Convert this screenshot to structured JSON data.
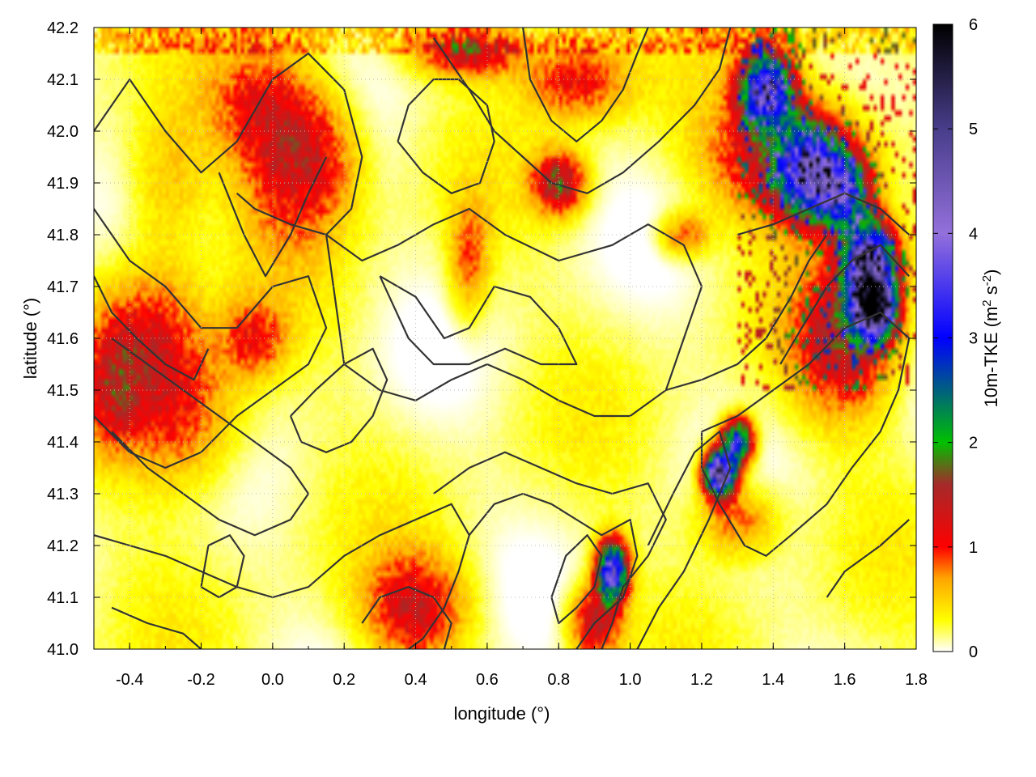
{
  "chart_data": {
    "type": "heatmap",
    "xlabel": "longitude (°)",
    "ylabel": "latitude (°)",
    "colorbar_label": "10m-TKE (m",
    "colorbar_label_sup1": "2",
    "colorbar_label_mid": " s",
    "colorbar_label_sup2": "-2",
    "colorbar_label_end": ")",
    "xlim": [
      -0.5,
      1.8
    ],
    "ylim": [
      41.0,
      42.2
    ],
    "zlim": [
      0,
      6
    ],
    "x_ticks": [
      -0.4,
      -0.2,
      0.0,
      0.2,
      0.4,
      0.6,
      0.8,
      1.0,
      1.2,
      1.4,
      1.6,
      1.8
    ],
    "x_tick_labels": [
      "-0.4",
      "-0.2",
      "0.0",
      "0.2",
      "0.4",
      "0.6",
      "0.8",
      "1.0",
      "1.2",
      "1.4",
      "1.6",
      "1.8"
    ],
    "y_ticks": [
      41.0,
      41.1,
      41.2,
      41.3,
      41.4,
      41.5,
      41.6,
      41.7,
      41.8,
      41.9,
      42.0,
      42.1,
      42.2
    ],
    "y_tick_labels": [
      "41.0",
      "41.1",
      "41.2",
      "41.3",
      "41.4",
      "41.5",
      "41.6",
      "41.7",
      "41.8",
      "41.9",
      "42.0",
      "42.1",
      "42.2"
    ],
    "colorbar_ticks": [
      0,
      1,
      2,
      3,
      4,
      5,
      6
    ],
    "colorbar_tick_labels": [
      "0",
      "1",
      "2",
      "3",
      "4",
      "5",
      "6"
    ],
    "colormap_stops": [
      {
        "v": 0.0,
        "color": "#ffffff"
      },
      {
        "v": 0.3,
        "color": "#ffff00"
      },
      {
        "v": 0.7,
        "color": "#ffa500"
      },
      {
        "v": 1.0,
        "color": "#ff0000"
      },
      {
        "v": 1.6,
        "color": "#a52a2a"
      },
      {
        "v": 2.0,
        "color": "#00c000"
      },
      {
        "v": 3.0,
        "color": "#0000ff"
      },
      {
        "v": 4.0,
        "color": "#9370db"
      },
      {
        "v": 5.0,
        "color": "#483d8b"
      },
      {
        "v": 6.0,
        "color": "#000000"
      }
    ],
    "field_blobs": [
      {
        "lon": 0.05,
        "lat": 41.95,
        "sx": 0.1,
        "sy": 0.12,
        "amp": 0.9
      },
      {
        "lon": 0.15,
        "lat": 41.95,
        "sx": 0.08,
        "sy": 0.08,
        "amp": 0.5
      },
      {
        "lon": -0.05,
        "lat": 42.05,
        "sx": 0.1,
        "sy": 0.08,
        "amp": 0.6
      },
      {
        "lon": -0.35,
        "lat": 41.6,
        "sx": 0.1,
        "sy": 0.1,
        "amp": 0.9
      },
      {
        "lon": -0.25,
        "lat": 41.45,
        "sx": 0.12,
        "sy": 0.1,
        "amp": 0.8
      },
      {
        "lon": -0.45,
        "lat": 41.5,
        "sx": 0.05,
        "sy": 0.08,
        "amp": 0.7
      },
      {
        "lon": -0.05,
        "lat": 41.6,
        "sx": 0.06,
        "sy": 0.05,
        "amp": 0.8
      },
      {
        "lon": 0.4,
        "lat": 41.08,
        "sx": 0.1,
        "sy": 0.07,
        "amp": 1.1
      },
      {
        "lon": 0.55,
        "lat": 41.75,
        "sx": 0.04,
        "sy": 0.08,
        "amp": 0.7
      },
      {
        "lon": 1.45,
        "lat": 41.95,
        "sx": 0.15,
        "sy": 0.08,
        "amp": 1.4
      },
      {
        "lon": 1.38,
        "lat": 42.08,
        "sx": 0.05,
        "sy": 0.05,
        "amp": 3.5
      },
      {
        "lon": 1.5,
        "lat": 41.92,
        "sx": 0.06,
        "sy": 0.06,
        "amp": 3.0
      },
      {
        "lon": 1.6,
        "lat": 41.88,
        "sx": 0.05,
        "sy": 0.05,
        "amp": 2.5
      },
      {
        "lon": 1.67,
        "lat": 41.75,
        "sx": 0.05,
        "sy": 0.05,
        "amp": 3.8
      },
      {
        "lon": 1.68,
        "lat": 41.66,
        "sx": 0.04,
        "sy": 0.04,
        "amp": 5.5
      },
      {
        "lon": 1.6,
        "lat": 41.6,
        "sx": 0.1,
        "sy": 0.1,
        "amp": 1.3
      },
      {
        "lon": 1.25,
        "lat": 41.34,
        "sx": 0.03,
        "sy": 0.03,
        "amp": 4.5
      },
      {
        "lon": 1.3,
        "lat": 41.4,
        "sx": 0.03,
        "sy": 0.03,
        "amp": 3.0
      },
      {
        "lon": 0.95,
        "lat": 41.15,
        "sx": 0.03,
        "sy": 0.04,
        "amp": 3.5
      },
      {
        "lon": 0.9,
        "lat": 41.05,
        "sx": 0.05,
        "sy": 0.05,
        "amp": 1.2
      },
      {
        "lon": 0.85,
        "lat": 42.1,
        "sx": 0.1,
        "sy": 0.05,
        "amp": 1.0
      },
      {
        "lon": 0.55,
        "lat": 42.15,
        "sx": 0.1,
        "sy": 0.03,
        "amp": 1.2
      },
      {
        "lon": 1.3,
        "lat": 41.25,
        "sx": 0.08,
        "sy": 0.05,
        "amp": 0.8
      },
      {
        "lon": 1.15,
        "lat": 41.8,
        "sx": 0.05,
        "sy": 0.03,
        "amp": 0.8
      },
      {
        "lon": 0.8,
        "lat": 41.9,
        "sx": 0.05,
        "sy": 0.04,
        "amp": 1.5
      },
      {
        "lon": -0.3,
        "lat": 41.9,
        "sx": 0.08,
        "sy": 0.1,
        "amp": 0.5
      }
    ],
    "contours": [
      [
        [
          -0.5,
          42.0
        ],
        [
          -0.4,
          42.1
        ],
        [
          -0.3,
          42.0
        ],
        [
          -0.2,
          41.92
        ],
        [
          -0.1,
          41.98
        ],
        [
          0.0,
          42.1
        ],
        [
          0.1,
          42.15
        ],
        [
          0.2,
          42.08
        ],
        [
          0.25,
          41.95
        ],
        [
          0.22,
          41.85
        ],
        [
          0.15,
          41.8
        ],
        [
          0.05,
          41.82
        ],
        [
          -0.05,
          41.85
        ],
        [
          -0.1,
          41.88
        ]
      ],
      [
        [
          -0.5,
          41.85
        ],
        [
          -0.4,
          41.75
        ],
        [
          -0.3,
          41.7
        ],
        [
          -0.2,
          41.62
        ],
        [
          -0.1,
          41.62
        ],
        [
          0.0,
          41.7
        ],
        [
          0.1,
          41.72
        ],
        [
          0.15,
          41.62
        ],
        [
          0.1,
          41.55
        ],
        [
          0.0,
          41.5
        ],
        [
          -0.1,
          41.45
        ],
        [
          -0.2,
          41.38
        ],
        [
          -0.3,
          41.35
        ],
        [
          -0.4,
          41.38
        ],
        [
          -0.5,
          41.45
        ]
      ],
      [
        [
          -0.45,
          41.6
        ],
        [
          -0.35,
          41.55
        ],
        [
          -0.25,
          41.5
        ],
        [
          -0.15,
          41.45
        ],
        [
          -0.05,
          41.4
        ],
        [
          0.05,
          41.35
        ],
        [
          0.1,
          41.3
        ],
        [
          0.05,
          41.25
        ],
        [
          -0.05,
          41.22
        ],
        [
          -0.15,
          41.25
        ],
        [
          -0.25,
          41.3
        ],
        [
          -0.35,
          41.35
        ],
        [
          -0.45,
          41.42
        ]
      ],
      [
        [
          -0.15,
          41.92
        ],
        [
          -0.08,
          41.8
        ],
        [
          -0.02,
          41.72
        ],
        [
          0.05,
          41.8
        ],
        [
          0.1,
          41.88
        ],
        [
          0.15,
          41.95
        ]
      ],
      [
        [
          0.15,
          41.8
        ],
        [
          0.25,
          41.75
        ],
        [
          0.35,
          41.78
        ],
        [
          0.45,
          41.82
        ],
        [
          0.55,
          41.85
        ],
        [
          0.65,
          41.8
        ],
        [
          0.8,
          41.75
        ],
        [
          0.95,
          41.78
        ],
        [
          1.05,
          41.82
        ],
        [
          1.15,
          41.78
        ],
        [
          1.2,
          41.7
        ],
        [
          1.15,
          41.6
        ],
        [
          1.1,
          41.5
        ],
        [
          1.0,
          41.45
        ],
        [
          0.9,
          41.45
        ],
        [
          0.8,
          41.48
        ],
        [
          0.7,
          41.52
        ],
        [
          0.6,
          41.55
        ],
        [
          0.5,
          41.52
        ],
        [
          0.4,
          41.48
        ],
        [
          0.3,
          41.5
        ],
        [
          0.2,
          41.55
        ],
        [
          0.18,
          41.65
        ],
        [
          0.15,
          41.8
        ]
      ],
      [
        [
          0.3,
          41.72
        ],
        [
          0.4,
          41.68
        ],
        [
          0.48,
          41.6
        ],
        [
          0.55,
          41.62
        ],
        [
          0.62,
          41.7
        ],
        [
          0.72,
          41.68
        ],
        [
          0.8,
          41.62
        ],
        [
          0.85,
          41.55
        ],
        [
          0.75,
          41.55
        ],
        [
          0.65,
          41.58
        ],
        [
          0.55,
          41.55
        ],
        [
          0.45,
          41.55
        ],
        [
          0.38,
          41.6
        ],
        [
          0.3,
          41.72
        ]
      ],
      [
        [
          0.45,
          41.3
        ],
        [
          0.55,
          41.35
        ],
        [
          0.65,
          41.38
        ],
        [
          0.75,
          41.35
        ],
        [
          0.85,
          41.32
        ],
        [
          0.95,
          41.3
        ],
        [
          1.05,
          41.32
        ],
        [
          1.1,
          41.25
        ],
        [
          1.05,
          41.18
        ],
        [
          0.98,
          41.12
        ],
        [
          0.95,
          41.05
        ],
        [
          0.92,
          41.0
        ]
      ],
      [
        [
          0.55,
          41.22
        ],
        [
          0.62,
          41.28
        ],
        [
          0.7,
          41.3
        ],
        [
          0.78,
          41.28
        ],
        [
          0.85,
          41.25
        ],
        [
          0.92,
          41.22
        ],
        [
          1.0,
          41.25
        ],
        [
          1.02,
          41.18
        ],
        [
          0.98,
          41.1
        ],
        [
          0.9,
          41.05
        ],
        [
          0.85,
          41.0
        ]
      ],
      [
        [
          1.2,
          41.42
        ],
        [
          1.3,
          41.45
        ],
        [
          1.4,
          41.5
        ],
        [
          1.5,
          41.55
        ],
        [
          1.6,
          41.62
        ],
        [
          1.7,
          41.65
        ],
        [
          1.78,
          41.6
        ],
        [
          1.75,
          41.5
        ],
        [
          1.7,
          41.42
        ],
        [
          1.62,
          41.35
        ],
        [
          1.55,
          41.28
        ],
        [
          1.45,
          41.22
        ],
        [
          1.38,
          41.18
        ],
        [
          1.32,
          41.2
        ],
        [
          1.25,
          41.28
        ],
        [
          1.2,
          41.35
        ],
        [
          1.2,
          41.42
        ]
      ],
      [
        [
          0.7,
          42.2
        ],
        [
          0.72,
          42.1
        ],
        [
          0.78,
          42.02
        ],
        [
          0.85,
          41.98
        ],
        [
          0.92,
          42.02
        ],
        [
          0.98,
          42.08
        ],
        [
          1.02,
          42.15
        ],
        [
          1.05,
          42.2
        ]
      ],
      [
        [
          0.45,
          42.18
        ],
        [
          0.55,
          42.08
        ],
        [
          0.62,
          42.0
        ],
        [
          0.7,
          41.95
        ],
        [
          0.78,
          41.9
        ],
        [
          0.88,
          41.88
        ],
        [
          0.98,
          41.92
        ],
        [
          1.08,
          41.98
        ],
        [
          1.18,
          42.05
        ],
        [
          1.25,
          42.12
        ],
        [
          1.28,
          42.2
        ]
      ],
      [
        [
          1.3,
          41.8
        ],
        [
          1.4,
          41.82
        ],
        [
          1.5,
          41.85
        ],
        [
          1.6,
          41.88
        ],
        [
          1.7,
          41.85
        ],
        [
          1.78,
          41.8
        ]
      ],
      [
        [
          -0.5,
          41.22
        ],
        [
          -0.4,
          41.2
        ],
        [
          -0.3,
          41.18
        ],
        [
          -0.2,
          41.15
        ],
        [
          -0.1,
          41.12
        ],
        [
          0.0,
          41.1
        ],
        [
          0.1,
          41.12
        ],
        [
          0.2,
          41.18
        ],
        [
          0.3,
          41.22
        ],
        [
          0.4,
          41.25
        ],
        [
          0.5,
          41.28
        ],
        [
          0.55,
          41.22
        ],
        [
          0.52,
          41.15
        ],
        [
          0.48,
          41.08
        ],
        [
          0.42,
          41.02
        ],
        [
          0.38,
          41.0
        ]
      ],
      [
        [
          0.25,
          41.05
        ],
        [
          0.3,
          41.1
        ],
        [
          0.38,
          41.12
        ],
        [
          0.45,
          41.1
        ],
        [
          0.5,
          41.05
        ],
        [
          0.48,
          41.0
        ]
      ],
      [
        [
          -0.45,
          41.08
        ],
        [
          -0.35,
          41.05
        ],
        [
          -0.25,
          41.03
        ],
        [
          -0.2,
          41.0
        ]
      ],
      [
        [
          -0.2,
          41.12
        ],
        [
          -0.15,
          41.1
        ],
        [
          -0.1,
          41.12
        ],
        [
          -0.08,
          41.18
        ],
        [
          -0.12,
          41.22
        ],
        [
          -0.18,
          41.2
        ],
        [
          -0.2,
          41.12
        ]
      ],
      [
        [
          1.55,
          41.1
        ],
        [
          1.6,
          41.15
        ],
        [
          1.7,
          41.2
        ],
        [
          1.78,
          41.25
        ]
      ],
      [
        [
          0.35,
          41.98
        ],
        [
          0.42,
          41.92
        ],
        [
          0.5,
          41.88
        ],
        [
          0.58,
          41.9
        ],
        [
          0.62,
          41.98
        ],
        [
          0.6,
          42.05
        ],
        [
          0.52,
          42.1
        ],
        [
          0.45,
          42.1
        ],
        [
          0.38,
          42.05
        ],
        [
          0.35,
          41.98
        ]
      ],
      [
        [
          1.42,
          41.55
        ],
        [
          1.48,
          41.62
        ],
        [
          1.55,
          41.7
        ],
        [
          1.62,
          41.75
        ],
        [
          1.7,
          41.78
        ],
        [
          1.78,
          41.72
        ]
      ],
      [
        [
          1.05,
          41.2
        ],
        [
          1.12,
          41.3
        ],
        [
          1.18,
          41.38
        ],
        [
          1.25,
          41.42
        ],
        [
          1.28,
          41.35
        ],
        [
          1.22,
          41.25
        ],
        [
          1.15,
          41.15
        ],
        [
          1.08,
          41.08
        ],
        [
          1.02,
          41.0
        ]
      ],
      [
        [
          1.1,
          41.5
        ],
        [
          1.2,
          41.52
        ],
        [
          1.3,
          41.55
        ],
        [
          1.38,
          41.6
        ],
        [
          1.45,
          41.68
        ],
        [
          1.5,
          41.75
        ],
        [
          1.55,
          41.8
        ]
      ],
      [
        [
          0.78,
          41.1
        ],
        [
          0.82,
          41.18
        ],
        [
          0.88,
          41.22
        ],
        [
          0.92,
          41.18
        ],
        [
          0.9,
          41.12
        ],
        [
          0.85,
          41.08
        ],
        [
          0.8,
          41.05
        ],
        [
          0.78,
          41.1
        ]
      ],
      [
        [
          -0.5,
          41.72
        ],
        [
          -0.45,
          41.65
        ],
        [
          -0.38,
          41.6
        ],
        [
          -0.3,
          41.55
        ],
        [
          -0.22,
          41.52
        ],
        [
          -0.18,
          41.58
        ]
      ],
      [
        [
          0.05,
          41.45
        ],
        [
          0.12,
          41.5
        ],
        [
          0.2,
          41.55
        ],
        [
          0.28,
          41.58
        ],
        [
          0.32,
          41.52
        ],
        [
          0.28,
          41.45
        ],
        [
          0.22,
          41.4
        ],
        [
          0.15,
          41.38
        ],
        [
          0.08,
          41.4
        ],
        [
          0.05,
          41.45
        ]
      ]
    ]
  }
}
